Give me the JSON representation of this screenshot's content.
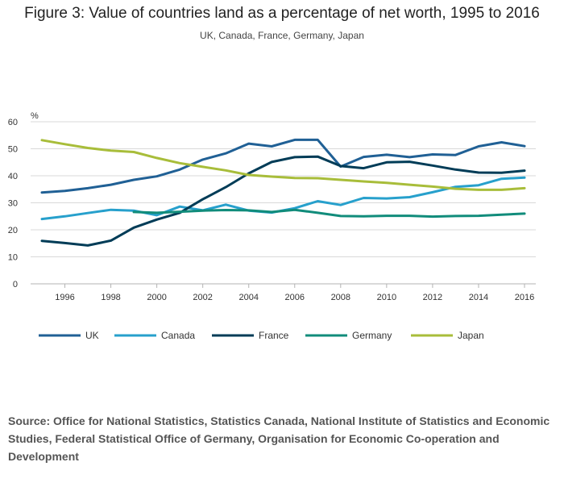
{
  "chart_data": {
    "type": "line",
    "title": "Figure 3: Value of countries land as a percentage of net worth, 1995 to 2016",
    "subtitle": "UK, Canada, France, Germany, Japan",
    "ylabel": "%",
    "xlabel": "",
    "ylim": [
      0,
      60
    ],
    "yticks": [
      0,
      10,
      20,
      30,
      40,
      50,
      60
    ],
    "xlim": [
      1995,
      2016
    ],
    "xticks": [
      1996,
      1998,
      2000,
      2002,
      2004,
      2006,
      2008,
      2010,
      2012,
      2014,
      2016
    ],
    "grid": true,
    "legend_position": "bottom",
    "series": [
      {
        "name": "UK",
        "color": "#206095",
        "x": [
          1995,
          1996,
          1997,
          1998,
          1999,
          2000,
          2001,
          2002,
          2003,
          2004,
          2005,
          2006,
          2007,
          2008,
          2009,
          2010,
          2011,
          2012,
          2013,
          2014,
          2015,
          2016
        ],
        "values": [
          33.8,
          34.4,
          35.4,
          36.7,
          38.5,
          39.8,
          42.3,
          46.0,
          48.3,
          51.9,
          50.9,
          53.3,
          53.3,
          43.4,
          47.0,
          47.8,
          46.9,
          47.9,
          47.7,
          50.9,
          52.4,
          51.0
        ]
      },
      {
        "name": "Canada",
        "color": "#27a0cc",
        "x": [
          1995,
          1996,
          1997,
          1998,
          1999,
          2000,
          2001,
          2002,
          2003,
          2004,
          2005,
          2006,
          2007,
          2008,
          2009,
          2010,
          2011,
          2012,
          2013,
          2014,
          2015,
          2016
        ],
        "values": [
          24.0,
          25.0,
          26.2,
          27.4,
          27.1,
          25.4,
          28.6,
          27.2,
          29.3,
          27.1,
          26.4,
          28.0,
          30.6,
          29.2,
          31.8,
          31.6,
          32.1,
          33.9,
          35.9,
          36.5,
          38.9,
          39.3
        ]
      },
      {
        "name": "France",
        "color": "#003c57",
        "x": [
          1995,
          1996,
          1997,
          1998,
          1999,
          2000,
          2001,
          2002,
          2003,
          2004,
          2005,
          2006,
          2007,
          2008,
          2009,
          2010,
          2011,
          2012,
          2013,
          2014,
          2015,
          2016
        ],
        "values": [
          15.9,
          15.1,
          14.2,
          16.0,
          20.8,
          23.8,
          26.3,
          31.3,
          35.8,
          40.9,
          45.1,
          46.9,
          47.1,
          43.6,
          42.8,
          45.0,
          45.2,
          43.8,
          42.3,
          41.2,
          41.1,
          41.9
        ]
      },
      {
        "name": "Germany",
        "color": "#118c7b",
        "x": [
          1999,
          2000,
          2001,
          2002,
          2003,
          2004,
          2005,
          2006,
          2007,
          2008,
          2009,
          2010,
          2011,
          2012,
          2013,
          2014,
          2015,
          2016
        ],
        "values": [
          26.6,
          26.3,
          26.7,
          27.1,
          27.3,
          27.2,
          26.6,
          27.4,
          26.3,
          25.1,
          25.0,
          25.2,
          25.2,
          24.9,
          25.1,
          25.2,
          25.6,
          26.0
        ]
      },
      {
        "name": "Japan",
        "color": "#a8bd3a",
        "x": [
          1995,
          1996,
          1997,
          1998,
          1999,
          2000,
          2001,
          2002,
          2003,
          2004,
          2005,
          2006,
          2007,
          2008,
          2009,
          2010,
          2011,
          2012,
          2013,
          2014,
          2015,
          2016
        ],
        "values": [
          53.2,
          51.7,
          50.3,
          49.3,
          48.8,
          46.6,
          44.7,
          43.3,
          42.0,
          40.3,
          39.7,
          39.2,
          39.1,
          38.5,
          37.9,
          37.4,
          36.7,
          36.0,
          35.2,
          34.8,
          34.8,
          35.4
        ]
      }
    ],
    "source": "Source: Office for National Statistics, Statistics Canada, National Institute of Statistics and Economic Studies, Federal Statistical Office of Germany, Organisation for Economic Co-operation and Development"
  }
}
